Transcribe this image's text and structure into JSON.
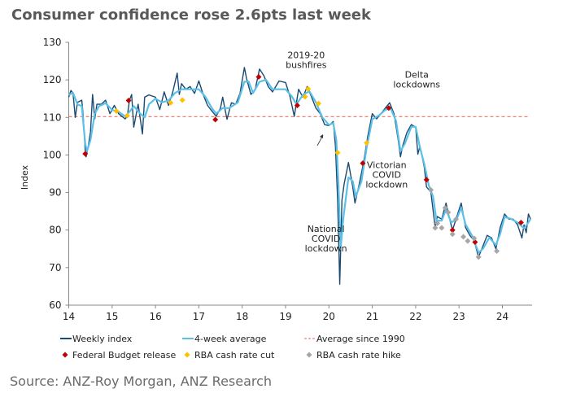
{
  "title": "Consumer confidence rose 2.6pts last week",
  "source": "Source: ANZ-Roy Morgan, ANZ Research",
  "colors": {
    "weekly": "#1a4a72",
    "average": "#5bc0e8",
    "since1990": "#f08070",
    "budget": "#c00000",
    "cut": "#ffc000",
    "hike": "#a6a6a6"
  },
  "chart_data": {
    "type": "line",
    "ylabel": "Index",
    "xlabel": "",
    "xlim": [
      14,
      24.7
    ],
    "ylim": [
      60,
      130
    ],
    "xticks": [
      "14",
      "15",
      "16",
      "17",
      "18",
      "19",
      "20",
      "21",
      "22",
      "23",
      "24"
    ],
    "yticks": [
      "60",
      "70",
      "80",
      "90",
      "100",
      "110",
      "120",
      "130"
    ],
    "grid": false,
    "legend_placement": "bottom",
    "legend": [
      "Weekly index",
      "4-week average",
      "Average since 1990",
      "Federal Budget release",
      "RBA cash rate cut",
      "RBA cash rate hike"
    ],
    "series": [
      {
        "name": "Weekly index",
        "points": [
          [
            14.0,
            115.4
          ],
          [
            14.05,
            117.2
          ],
          [
            14.1,
            116.4
          ],
          [
            14.15,
            110
          ],
          [
            14.2,
            114
          ],
          [
            14.3,
            114.6
          ],
          [
            14.33,
            111
          ],
          [
            14.38,
            101
          ],
          [
            14.4,
            99.5
          ],
          [
            14.45,
            102.4
          ],
          [
            14.5,
            106
          ],
          [
            14.55,
            116.1
          ],
          [
            14.6,
            109.6
          ],
          [
            14.65,
            113.5
          ],
          [
            14.75,
            113.5
          ],
          [
            14.85,
            114.6
          ],
          [
            14.95,
            111
          ],
          [
            15.05,
            113.2
          ],
          [
            15.15,
            111
          ],
          [
            15.3,
            109.6
          ],
          [
            15.35,
            110.3
          ],
          [
            15.4,
            114.6
          ],
          [
            15.45,
            116.1
          ],
          [
            15.5,
            107.4
          ],
          [
            15.6,
            113.5
          ],
          [
            15.7,
            105.6
          ],
          [
            15.75,
            115.4
          ],
          [
            15.85,
            116
          ],
          [
            16.0,
            115.4
          ],
          [
            16.1,
            112.1
          ],
          [
            16.2,
            116.8
          ],
          [
            16.3,
            113.2
          ],
          [
            16.4,
            116.8
          ],
          [
            16.5,
            121.8
          ],
          [
            16.55,
            116.1
          ],
          [
            16.6,
            119
          ],
          [
            16.7,
            117.5
          ],
          [
            16.8,
            118.2
          ],
          [
            16.9,
            116.4
          ],
          [
            17.0,
            119.7
          ],
          [
            17.1,
            116.1
          ],
          [
            17.2,
            113.2
          ],
          [
            17.3,
            111.7
          ],
          [
            17.4,
            110.3
          ],
          [
            17.5,
            112.5
          ],
          [
            17.55,
            115.4
          ],
          [
            17.65,
            109.5
          ],
          [
            17.75,
            113.9
          ],
          [
            17.85,
            113.5
          ],
          [
            17.95,
            116.4
          ],
          [
            18.05,
            123.3
          ],
          [
            18.1,
            120.4
          ],
          [
            18.2,
            116.1
          ],
          [
            18.3,
            117.5
          ],
          [
            18.4,
            122.9
          ],
          [
            18.5,
            121.1
          ],
          [
            18.6,
            118.2
          ],
          [
            18.7,
            116.8
          ],
          [
            18.85,
            119.7
          ],
          [
            19.0,
            119.3
          ],
          [
            19.1,
            115.7
          ],
          [
            19.2,
            110.3
          ],
          [
            19.3,
            117.5
          ],
          [
            19.4,
            115.4
          ],
          [
            19.5,
            118.2
          ],
          [
            19.6,
            115.4
          ],
          [
            19.7,
            112.5
          ],
          [
            19.8,
            111
          ],
          [
            19.9,
            108.1
          ],
          [
            20.0,
            107.8
          ],
          [
            20.1,
            108.9
          ],
          [
            20.15,
            102.4
          ],
          [
            20.2,
            88
          ],
          [
            20.25,
            65.6
          ],
          [
            20.3,
            88
          ],
          [
            20.35,
            92.3
          ],
          [
            20.45,
            98
          ],
          [
            20.55,
            91.5
          ],
          [
            20.6,
            87.2
          ],
          [
            20.7,
            92.3
          ],
          [
            20.8,
            98
          ],
          [
            20.9,
            105.3
          ],
          [
            21.0,
            111
          ],
          [
            21.1,
            109.6
          ],
          [
            21.2,
            111
          ],
          [
            21.3,
            112.5
          ],
          [
            21.4,
            113.9
          ],
          [
            21.5,
            111
          ],
          [
            21.6,
            103.8
          ],
          [
            21.65,
            99.5
          ],
          [
            21.7,
            102.4
          ],
          [
            21.8,
            106
          ],
          [
            21.9,
            108.1
          ],
          [
            22.0,
            107.4
          ],
          [
            22.05,
            100.2
          ],
          [
            22.1,
            102.4
          ],
          [
            22.2,
            96.6
          ],
          [
            22.25,
            91.5
          ],
          [
            22.35,
            90.1
          ],
          [
            22.45,
            80.7
          ],
          [
            22.5,
            83.6
          ],
          [
            22.6,
            82.9
          ],
          [
            22.7,
            87.2
          ],
          [
            22.8,
            82.2
          ],
          [
            22.85,
            80
          ],
          [
            22.95,
            83.6
          ],
          [
            23.05,
            87.2
          ],
          [
            23.15,
            80.7
          ],
          [
            23.25,
            78.6
          ],
          [
            23.35,
            77.1
          ],
          [
            23.45,
            72.8
          ],
          [
            23.55,
            75.7
          ],
          [
            23.65,
            78.6
          ],
          [
            23.75,
            77.9
          ],
          [
            23.85,
            75
          ],
          [
            23.95,
            80.7
          ],
          [
            24.05,
            84.3
          ],
          [
            24.15,
            82.9
          ],
          [
            24.25,
            82.9
          ],
          [
            24.35,
            81.4
          ],
          [
            24.45,
            77.9
          ],
          [
            24.5,
            81.4
          ],
          [
            24.55,
            79.3
          ],
          [
            24.6,
            84.3
          ],
          [
            24.65,
            82.9
          ]
        ]
      },
      {
        "name": "4-week average",
        "points": [
          [
            14.0,
            116
          ],
          [
            14.1,
            116.5
          ],
          [
            14.2,
            113.5
          ],
          [
            14.3,
            113
          ],
          [
            14.38,
            103
          ],
          [
            14.42,
            101
          ],
          [
            14.5,
            104
          ],
          [
            14.6,
            111
          ],
          [
            14.7,
            113
          ],
          [
            14.85,
            113.8
          ],
          [
            15.0,
            112
          ],
          [
            15.15,
            111.5
          ],
          [
            15.3,
            110.3
          ],
          [
            15.4,
            111.5
          ],
          [
            15.5,
            113
          ],
          [
            15.65,
            111
          ],
          [
            15.75,
            110
          ],
          [
            15.85,
            113.5
          ],
          [
            16.0,
            115
          ],
          [
            16.15,
            114
          ],
          [
            16.3,
            114.5
          ],
          [
            16.45,
            116.5
          ],
          [
            16.6,
            117.5
          ],
          [
            16.8,
            117.5
          ],
          [
            17.0,
            117.5
          ],
          [
            17.15,
            115.5
          ],
          [
            17.3,
            112.5
          ],
          [
            17.4,
            111
          ],
          [
            17.55,
            112.5
          ],
          [
            17.7,
            112.5
          ],
          [
            17.9,
            114
          ],
          [
            18.05,
            119.5
          ],
          [
            18.15,
            119.5
          ],
          [
            18.25,
            116.5
          ],
          [
            18.4,
            119.5
          ],
          [
            18.55,
            120
          ],
          [
            18.7,
            117.5
          ],
          [
            18.85,
            117.5
          ],
          [
            19.0,
            117.5
          ],
          [
            19.15,
            115.5
          ],
          [
            19.25,
            113.5
          ],
          [
            19.4,
            116
          ],
          [
            19.55,
            117
          ],
          [
            19.7,
            114
          ],
          [
            19.85,
            110
          ],
          [
            20.0,
            108
          ],
          [
            20.1,
            108.5
          ],
          [
            20.17,
            104
          ],
          [
            20.22,
            92
          ],
          [
            20.27,
            75
          ],
          [
            20.33,
            83
          ],
          [
            20.45,
            94
          ],
          [
            20.55,
            93
          ],
          [
            20.62,
            89
          ],
          [
            20.75,
            93
          ],
          [
            20.87,
            102
          ],
          [
            21.0,
            109.5
          ],
          [
            21.15,
            110.5
          ],
          [
            21.3,
            112
          ],
          [
            21.42,
            112.5
          ],
          [
            21.55,
            109
          ],
          [
            21.65,
            101
          ],
          [
            21.75,
            103
          ],
          [
            21.9,
            107.5
          ],
          [
            22.0,
            107.5
          ],
          [
            22.1,
            102
          ],
          [
            22.2,
            97.5
          ],
          [
            22.3,
            92
          ],
          [
            22.4,
            89
          ],
          [
            22.48,
            82.5
          ],
          [
            22.6,
            82.5
          ],
          [
            22.7,
            85.5
          ],
          [
            22.82,
            82
          ],
          [
            22.95,
            83
          ],
          [
            23.05,
            86
          ],
          [
            23.15,
            81.5
          ],
          [
            23.3,
            78.5
          ],
          [
            23.45,
            74
          ],
          [
            23.55,
            75
          ],
          [
            23.7,
            78
          ],
          [
            23.85,
            76
          ],
          [
            23.95,
            79
          ],
          [
            24.05,
            83.5
          ],
          [
            24.2,
            83
          ],
          [
            24.35,
            82
          ],
          [
            24.5,
            80.5
          ],
          [
            24.6,
            82
          ],
          [
            24.65,
            83
          ]
        ]
      },
      {
        "name": "Average since 1990",
        "value": 110.2
      }
    ],
    "markers": {
      "Federal Budget release": [
        [
          14.38,
          100.3
        ],
        [
          15.38,
          114.5
        ],
        [
          17.38,
          109.4
        ],
        [
          18.38,
          120.8
        ],
        [
          19.27,
          113.2
        ],
        [
          20.78,
          97.8
        ],
        [
          21.38,
          112.5
        ],
        [
          22.25,
          93.4
        ],
        [
          22.85,
          80
        ],
        [
          23.37,
          76.8
        ],
        [
          24.43,
          82
        ]
      ],
      "RBA cash rate cut": [
        [
          15.1,
          111.7
        ],
        [
          15.35,
          110.5
        ],
        [
          16.35,
          113.9
        ],
        [
          16.62,
          114.6
        ],
        [
          19.45,
          115.5
        ],
        [
          19.52,
          117.6
        ],
        [
          19.76,
          113.7
        ],
        [
          20.2,
          100.6
        ],
        [
          20.87,
          103.2
        ]
      ],
      "RBA cash rate hike": [
        [
          22.35,
          90.7
        ],
        [
          22.45,
          80.6
        ],
        [
          22.5,
          81.8
        ],
        [
          22.6,
          80.6
        ],
        [
          22.68,
          85.9
        ],
        [
          22.75,
          84.7
        ],
        [
          22.85,
          78.9
        ],
        [
          22.93,
          82.9
        ],
        [
          23.1,
          78.2
        ],
        [
          23.2,
          77.1
        ],
        [
          23.35,
          77.8
        ],
        [
          23.45,
          72.8
        ],
        [
          23.87,
          74.4
        ]
      ]
    },
    "annotations": [
      {
        "lines": [
          "2019-20",
          "bushfires"
        ],
        "at": [
          19.85,
          108
        ]
      },
      {
        "lines": [
          "National",
          "COVID",
          "lockdown"
        ],
        "at": [
          20.25,
          65.6
        ]
      },
      {
        "lines": [
          "Victorian",
          "COVID",
          "lockdown"
        ],
        "at": [
          20.6,
          87.2
        ]
      },
      {
        "lines": [
          "Delta",
          "lockdowns"
        ],
        "at": [
          21.65,
          99.5
        ]
      }
    ]
  }
}
